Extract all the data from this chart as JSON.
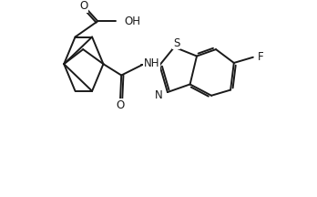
{
  "background_color": "#ffffff",
  "line_color": "#1a1a1a",
  "line_width": 1.4,
  "font_size": 8.5,
  "figsize": [
    3.48,
    2.16
  ],
  "dpi": 100,
  "xlim": [
    0,
    10.5
  ],
  "ylim": [
    0,
    8.5
  ]
}
